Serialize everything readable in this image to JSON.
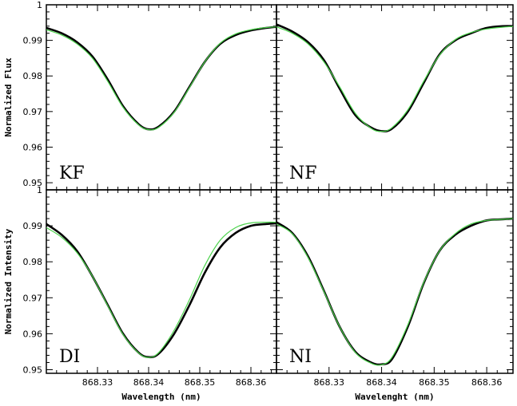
{
  "chart_data": {
    "type": "line",
    "layout": "2x2 panels, shared axes",
    "xlim": [
      868.32,
      868.365
    ],
    "xticks": [
      868.33,
      868.34,
      868.35,
      868.36
    ],
    "xtick_labels": [
      "868.33",
      "868.34",
      "868.35",
      "868.36"
    ],
    "grid": false,
    "top_row": {
      "ylabel": "Normalized Flux",
      "ylim": [
        0.948,
        1.0
      ],
      "yticks": [
        0.95,
        0.96,
        0.97,
        0.98,
        0.99,
        1.0
      ],
      "ytick_labels": [
        "0.95",
        "0.96",
        "0.97",
        "0.98",
        "0.99",
        "1"
      ]
    },
    "bottom_row": {
      "ylabel": "Normalized Intensity",
      "ylim": [
        0.949,
        1.0
      ],
      "yticks": [
        0.95,
        0.96,
        0.97,
        0.98,
        0.99,
        1.0
      ],
      "ytick_labels": [
        "0.95",
        "0.96",
        "0.97",
        "0.98",
        "0.99",
        "1"
      ]
    },
    "left_column": {
      "xlabel": "Wavelength (nm)"
    },
    "right_column": {
      "xlabel": "Wavelenght (nm)"
    },
    "series_colors": {
      "observed": "#000000",
      "model": "#4cd34c"
    },
    "panels": [
      {
        "label": "KF",
        "row": "top",
        "col": "left",
        "x": [
          868.32,
          868.323,
          868.326,
          868.329,
          868.332,
          868.335,
          868.338,
          868.34,
          868.342,
          868.345,
          868.348,
          868.351,
          868.354,
          868.357,
          868.36,
          868.363,
          868.365
        ],
        "observed": [
          0.9935,
          0.992,
          0.9895,
          0.9855,
          0.979,
          0.9715,
          0.9665,
          0.965,
          0.9658,
          0.97,
          0.977,
          0.984,
          0.989,
          0.9915,
          0.9928,
          0.9935,
          0.9938
        ],
        "model": [
          0.993,
          0.9915,
          0.989,
          0.985,
          0.9785,
          0.9712,
          0.9663,
          0.9649,
          0.9656,
          0.9698,
          0.9768,
          0.984,
          0.9892,
          0.9918,
          0.993,
          0.9936,
          0.9938
        ]
      },
      {
        "label": "NF",
        "row": "top",
        "col": "right",
        "x": [
          868.32,
          868.323,
          868.326,
          868.329,
          868.332,
          868.335,
          868.338,
          868.34,
          868.342,
          868.345,
          868.348,
          868.351,
          868.354,
          868.357,
          868.36,
          868.363,
          868.365
        ],
        "observed": [
          0.9945,
          0.9925,
          0.9895,
          0.9845,
          0.9765,
          0.969,
          0.9655,
          0.9645,
          0.9652,
          0.97,
          0.978,
          0.986,
          0.99,
          0.992,
          0.9935,
          0.994,
          0.994
        ],
        "model": [
          0.9938,
          0.992,
          0.989,
          0.984,
          0.977,
          0.9695,
          0.9653,
          0.9644,
          0.9655,
          0.9705,
          0.9785,
          0.9858,
          0.9902,
          0.9922,
          0.9932,
          0.9937,
          0.9939
        ]
      },
      {
        "label": "DI",
        "row": "bottom",
        "col": "left",
        "x": [
          868.32,
          868.323,
          868.326,
          868.329,
          868.332,
          868.335,
          868.338,
          868.34,
          868.342,
          868.345,
          868.348,
          868.351,
          868.354,
          868.357,
          868.36,
          868.363,
          868.365
        ],
        "observed": [
          0.9905,
          0.9875,
          0.983,
          0.976,
          0.968,
          0.96,
          0.9548,
          0.9535,
          0.9545,
          0.96,
          0.968,
          0.977,
          0.984,
          0.988,
          0.99,
          0.9905,
          0.9907
        ],
        "model": [
          0.9895,
          0.9868,
          0.9825,
          0.976,
          0.9678,
          0.9598,
          0.9547,
          0.9534,
          0.9548,
          0.961,
          0.9695,
          0.979,
          0.986,
          0.9895,
          0.9908,
          0.991,
          0.991
        ]
      },
      {
        "label": "NI",
        "row": "bottom",
        "col": "right",
        "x": [
          868.32,
          868.323,
          868.326,
          868.329,
          868.332,
          868.335,
          868.338,
          868.34,
          868.342,
          868.345,
          868.348,
          868.351,
          868.354,
          868.357,
          868.36,
          868.363,
          868.365
        ],
        "observed": [
          0.991,
          0.988,
          0.9815,
          0.972,
          0.962,
          0.955,
          0.952,
          0.9515,
          0.953,
          0.962,
          0.974,
          0.983,
          0.9875,
          0.99,
          0.9915,
          0.9918,
          0.992
        ],
        "model": [
          0.9905,
          0.9878,
          0.9812,
          0.9718,
          0.962,
          0.9548,
          0.9518,
          0.9514,
          0.9535,
          0.9625,
          0.9742,
          0.983,
          0.9878,
          0.9905,
          0.9915,
          0.9918,
          0.992
        ]
      }
    ]
  }
}
